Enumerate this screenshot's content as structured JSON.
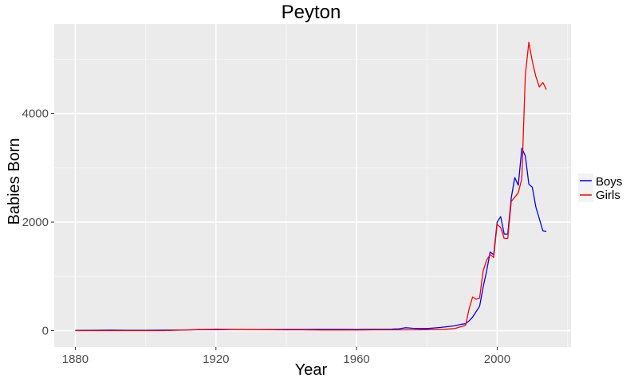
{
  "chart_data": {
    "type": "line",
    "title": "Peyton",
    "xlabel": "Year",
    "ylabel": "Babies Born",
    "xlim": [
      1874,
      2021
    ],
    "ylim": [
      -300,
      5650
    ],
    "xticks": [
      1880,
      1920,
      1960,
      2000
    ],
    "yticks": [
      0,
      2000,
      4000
    ],
    "grid": true,
    "legend_position": "right",
    "series": [
      {
        "name": "Boys",
        "color": "#0000ff",
        "points": [
          [
            1880,
            5
          ],
          [
            1885,
            8
          ],
          [
            1890,
            10
          ],
          [
            1895,
            8
          ],
          [
            1900,
            8
          ],
          [
            1905,
            10
          ],
          [
            1910,
            12
          ],
          [
            1915,
            18
          ],
          [
            1920,
            20
          ],
          [
            1925,
            22
          ],
          [
            1930,
            22
          ],
          [
            1935,
            22
          ],
          [
            1940,
            24
          ],
          [
            1945,
            24
          ],
          [
            1950,
            25
          ],
          [
            1955,
            25
          ],
          [
            1960,
            24
          ],
          [
            1965,
            28
          ],
          [
            1970,
            30
          ],
          [
            1972,
            35
          ],
          [
            1974,
            55
          ],
          [
            1976,
            45
          ],
          [
            1978,
            40
          ],
          [
            1980,
            40
          ],
          [
            1982,
            50
          ],
          [
            1984,
            60
          ],
          [
            1986,
            75
          ],
          [
            1988,
            90
          ],
          [
            1990,
            120
          ],
          [
            1991,
            130
          ],
          [
            1992,
            180
          ],
          [
            1993,
            250
          ],
          [
            1994,
            350
          ],
          [
            1995,
            450
          ],
          [
            1996,
            800
          ],
          [
            1997,
            1100
          ],
          [
            1998,
            1450
          ],
          [
            1999,
            1400
          ],
          [
            2000,
            2000
          ],
          [
            2001,
            2100
          ],
          [
            2002,
            1780
          ],
          [
            2003,
            1780
          ],
          [
            2004,
            2450
          ],
          [
            2005,
            2820
          ],
          [
            2006,
            2680
          ],
          [
            2007,
            3360
          ],
          [
            2008,
            3220
          ],
          [
            2009,
            2700
          ],
          [
            2010,
            2640
          ],
          [
            2011,
            2280
          ],
          [
            2012,
            2060
          ],
          [
            2013,
            1840
          ],
          [
            2014,
            1830
          ]
        ]
      },
      {
        "name": "Girls",
        "color": "#ff0000",
        "points": [
          [
            1880,
            0
          ],
          [
            1885,
            0
          ],
          [
            1890,
            0
          ],
          [
            1895,
            0
          ],
          [
            1900,
            0
          ],
          [
            1905,
            0
          ],
          [
            1910,
            10
          ],
          [
            1913,
            15
          ],
          [
            1915,
            22
          ],
          [
            1918,
            25
          ],
          [
            1920,
            30
          ],
          [
            1922,
            28
          ],
          [
            1925,
            25
          ],
          [
            1930,
            20
          ],
          [
            1935,
            18
          ],
          [
            1940,
            15
          ],
          [
            1945,
            15
          ],
          [
            1950,
            12
          ],
          [
            1955,
            12
          ],
          [
            1960,
            12
          ],
          [
            1965,
            15
          ],
          [
            1970,
            15
          ],
          [
            1975,
            15
          ],
          [
            1980,
            18
          ],
          [
            1985,
            25
          ],
          [
            1988,
            40
          ],
          [
            1990,
            80
          ],
          [
            1991,
            100
          ],
          [
            1992,
            400
          ],
          [
            1993,
            620
          ],
          [
            1994,
            580
          ],
          [
            1995,
            600
          ],
          [
            1996,
            1100
          ],
          [
            1997,
            1300
          ],
          [
            1998,
            1400
          ],
          [
            1999,
            1350
          ],
          [
            2000,
            1960
          ],
          [
            2001,
            1900
          ],
          [
            2002,
            1700
          ],
          [
            2003,
            1700
          ],
          [
            2004,
            2380
          ],
          [
            2005,
            2460
          ],
          [
            2006,
            2540
          ],
          [
            2007,
            2800
          ],
          [
            2008,
            4700
          ],
          [
            2009,
            5310
          ],
          [
            2010,
            4960
          ],
          [
            2011,
            4680
          ],
          [
            2012,
            4490
          ],
          [
            2013,
            4570
          ],
          [
            2014,
            4440
          ]
        ]
      }
    ]
  }
}
